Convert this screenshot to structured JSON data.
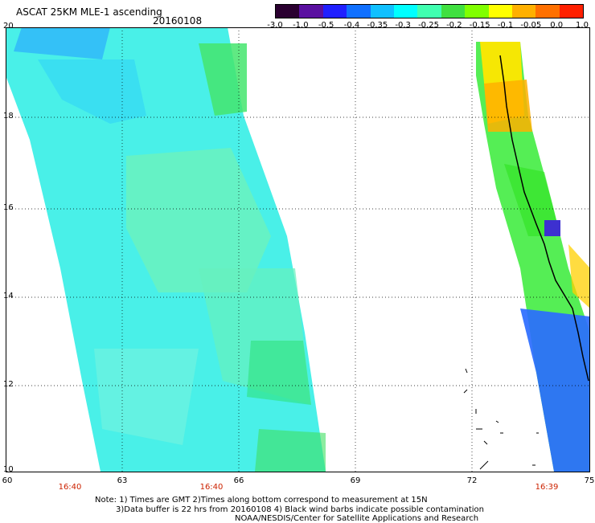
{
  "header": {
    "title": "ASCAT 25KM MLE-1 ascending",
    "date": "20160108"
  },
  "colorbar": {
    "labels": [
      "-3.0",
      "-1.0",
      "-0.5",
      "-0.4",
      "-0.35",
      "-0.3",
      "-0.25",
      "-0.2",
      "-0.15",
      "-0.1",
      "-0.05",
      "0.0",
      "1.0"
    ],
    "colors": [
      "#2a0030",
      "#5a10a0",
      "#2020ff",
      "#1070ff",
      "#10c0ff",
      "#00ffff",
      "#40ffb0",
      "#40e040",
      "#80ff00",
      "#ffff00",
      "#ffb000",
      "#ff7000",
      "#ff2000"
    ]
  },
  "axes": {
    "lat_labels": [
      "20",
      "18",
      "16",
      "14",
      "12",
      "10"
    ],
    "lon_labels": [
      "60",
      "63",
      "66",
      "69",
      "72",
      "75"
    ],
    "times": [
      "16:40",
      "16:40",
      "16:39"
    ]
  },
  "notes": {
    "line1": "Note: 1) Times are GMT 2)Times along bottom correspond to measurement at 15N",
    "line2": "3)Data buffer is 22 hrs from 20160108 4) Black wind barbs indicate possible contamination",
    "line3": "NOAA/NESDIS/Center for Satellite Applications and Research"
  },
  "swath_summary": {
    "left_swath": "mostly cyan/blue-green (-0.35 to -0.2)",
    "right_swath": "yellow/orange near 18-20N, green 14-17N, blue south of 13N"
  }
}
